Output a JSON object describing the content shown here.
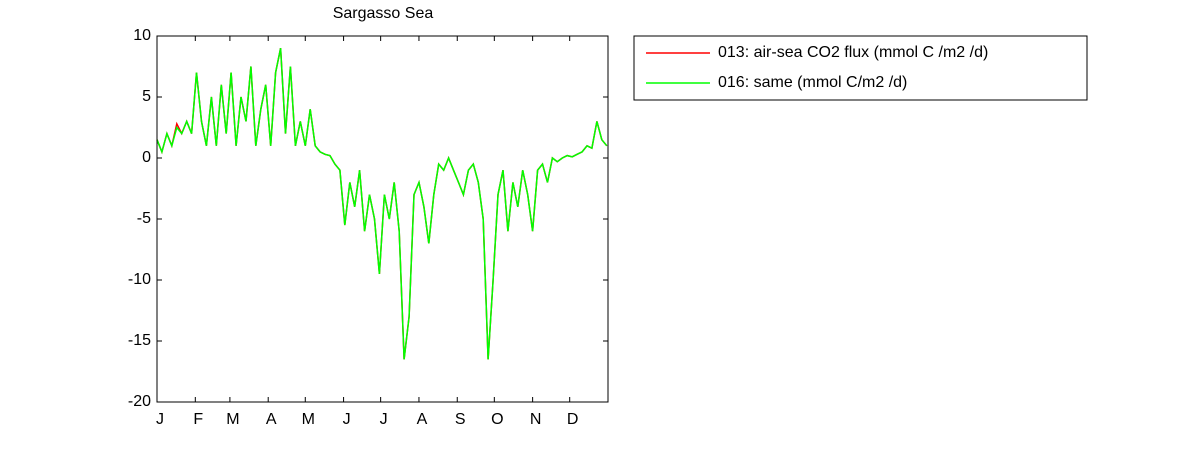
{
  "chart_data": {
    "type": "line",
    "title": "Sargasso Sea",
    "x": [
      1,
      5,
      9,
      13,
      17,
      21,
      25,
      29,
      33,
      37,
      41,
      45,
      49,
      53,
      57,
      61,
      65,
      69,
      73,
      77,
      81,
      85,
      89,
      93,
      97,
      101,
      105,
      109,
      113,
      117,
      121,
      125,
      129,
      133,
      137,
      141,
      145,
      149,
      153,
      157,
      161,
      165,
      169,
      173,
      177,
      181,
      185,
      189,
      193,
      197,
      201,
      205,
      209,
      213,
      217,
      221,
      225,
      229,
      233,
      237,
      241,
      245,
      249,
      253,
      257,
      261,
      265,
      269,
      273,
      277,
      281,
      285,
      289,
      293,
      297,
      301,
      305,
      309,
      313,
      317,
      321,
      325,
      329,
      333,
      337,
      341,
      345,
      349,
      353,
      357,
      361,
      365
    ],
    "series": [
      {
        "name": "013: air-sea CO2 flux (mmol C /m2 /d)",
        "color": "#ff0000",
        "values": [
          1.5,
          0.5,
          2,
          1,
          2.8,
          2,
          3,
          2,
          7,
          3,
          1,
          5,
          1,
          6,
          2,
          7,
          1,
          5,
          3,
          7.5,
          1,
          4,
          6,
          1,
          7,
          9,
          2,
          7.5,
          1,
          3,
          1,
          4,
          1,
          0.5,
          0.3,
          0.2,
          -0.5,
          -1,
          -5.5,
          -2,
          -4,
          -1,
          -6,
          -3,
          -5,
          -9.5,
          -3,
          -5,
          -2,
          -6,
          -16.5,
          -13,
          -3,
          -2,
          -4,
          -7,
          -3,
          -0.5,
          -1,
          0,
          -1,
          -2,
          -3,
          -1,
          -0.5,
          -2,
          -5,
          -16.5,
          -10,
          -3,
          -1,
          -6,
          -2,
          -4,
          -1,
          -3,
          -6,
          -1,
          -0.5,
          -2,
          0,
          -0.3,
          0,
          0.2,
          0.1,
          0.3,
          0.5,
          1,
          0.8,
          3,
          1.5,
          1
        ]
      },
      {
        "name": "016: same (mmol C/m2 /d)",
        "color": "#00ff00",
        "values": [
          1.5,
          0.5,
          2,
          1,
          2.5,
          2,
          3,
          2,
          7,
          3,
          1,
          5,
          1,
          6,
          2,
          7,
          1,
          5,
          3,
          7.5,
          1,
          4,
          6,
          1,
          7,
          9,
          2,
          7.5,
          1,
          3,
          1,
          4,
          1,
          0.5,
          0.3,
          0.2,
          -0.5,
          -1,
          -5.5,
          -2,
          -4,
          -1,
          -6,
          -3,
          -5,
          -9.5,
          -3,
          -5,
          -2,
          -6,
          -16.5,
          -13,
          -3,
          -2,
          -4,
          -7,
          -3,
          -0.5,
          -1,
          0,
          -1,
          -2,
          -3,
          -1,
          -0.5,
          -2,
          -5,
          -16.5,
          -10,
          -3,
          -1,
          -6,
          -2,
          -4,
          -1,
          -3,
          -6,
          -1,
          -0.5,
          -2,
          0,
          -0.3,
          0,
          0.2,
          0.1,
          0.3,
          0.5,
          1,
          0.8,
          3,
          1.5,
          1
        ]
      }
    ],
    "xlim": [
      1,
      366
    ],
    "xticks": [
      {
        "value": 1,
        "label": "J"
      },
      {
        "value": 32,
        "label": "F"
      },
      {
        "value": 60,
        "label": "M"
      },
      {
        "value": 91,
        "label": "A"
      },
      {
        "value": 121,
        "label": "M"
      },
      {
        "value": 152,
        "label": "J"
      },
      {
        "value": 182,
        "label": "J"
      },
      {
        "value": 213,
        "label": "A"
      },
      {
        "value": 244,
        "label": "S"
      },
      {
        "value": 274,
        "label": "O"
      },
      {
        "value": 305,
        "label": "N"
      },
      {
        "value": 335,
        "label": "D"
      }
    ],
    "ylim": [
      -20,
      10
    ],
    "yticks": [
      -20,
      -15,
      -10,
      -5,
      0,
      5,
      10
    ],
    "legend": "outside-top-right"
  }
}
